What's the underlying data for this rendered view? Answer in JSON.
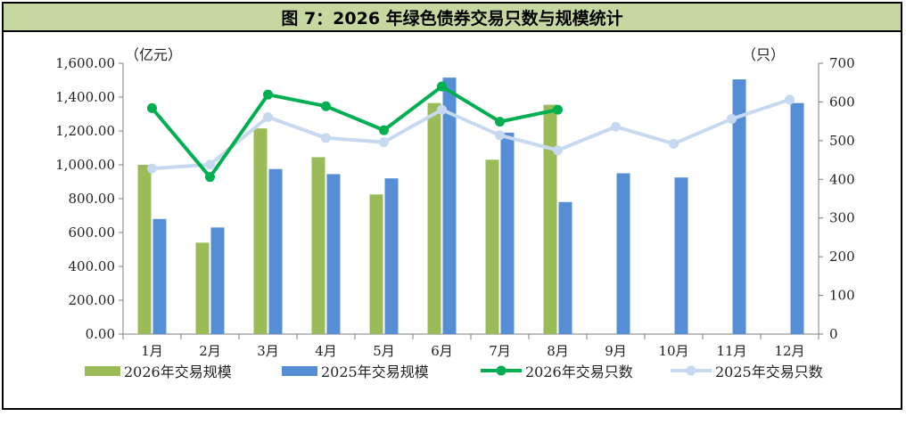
{
  "chart_data": {
    "type": "bar",
    "title": "图 7：2026 年绿色债券交易只数与规模统计",
    "categories": [
      "1月",
      "2月",
      "3月",
      "4月",
      "5月",
      "6月",
      "7月",
      "8月",
      "9月",
      "10月",
      "11月",
      "12月"
    ],
    "left_axis": {
      "unit": "（亿元）",
      "ylim": [
        0,
        1600
      ],
      "ticks": [
        "0.00",
        "200.00",
        "400.00",
        "600.00",
        "800.00",
        "1,000.00",
        "1,200.00",
        "1,400.00",
        "1,600.00"
      ]
    },
    "right_axis": {
      "unit": "（只）",
      "ylim": [
        0,
        700
      ],
      "ticks": [
        "0",
        "100",
        "200",
        "300",
        "400",
        "500",
        "600",
        "700"
      ]
    },
    "series": [
      {
        "name": "2026年交易规模",
        "kind": "bar",
        "axis": "left",
        "color": "#9bbb59",
        "values": [
          1000,
          540,
          1215,
          1045,
          825,
          1365,
          1030,
          1355,
          null,
          null,
          null,
          null
        ]
      },
      {
        "name": "2025年交易规模",
        "kind": "bar",
        "axis": "left",
        "color": "#558ed5",
        "values": [
          680,
          630,
          975,
          945,
          920,
          1515,
          1190,
          780,
          950,
          925,
          1505,
          1365
        ]
      },
      {
        "name": "2026年交易只数",
        "kind": "line",
        "axis": "right",
        "color": "#00b050",
        "values": [
          584,
          406,
          619,
          589,
          527,
          640,
          549,
          580,
          null,
          null,
          null,
          null
        ]
      },
      {
        "name": "2025年交易只数",
        "kind": "line",
        "axis": "right",
        "color": "#c6d9f1",
        "values": [
          428,
          438,
          561,
          507,
          496,
          580,
          514,
          475,
          536,
          492,
          556,
          606
        ]
      }
    ],
    "grid": false,
    "legend_position": "bottom"
  }
}
